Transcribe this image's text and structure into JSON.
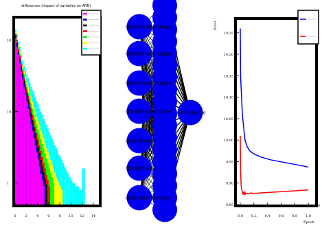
{
  "chart_data": [
    {
      "type": "bar",
      "title": "differences (impact of variables on ANN)",
      "xlabel": "",
      "ylabel": "",
      "xlim": [
        0,
        15
      ],
      "ylim_log": [
        0.5,
        200
      ],
      "log_y": true,
      "x_ticks": [
        "0",
        "2",
        "4",
        "6",
        "8",
        "10",
        "12",
        "14"
      ],
      "y_ticks": [
        "1",
        "10",
        "10",
        "10"
      ],
      "legend_placement": "top-right",
      "bin_width": 0.25,
      "series": [
        {
          "color": "#00ffff",
          "values": [
            140,
            120,
            95,
            80,
            62,
            52,
            44,
            38,
            33,
            29,
            25,
            22,
            20,
            18,
            16,
            14,
            12.5,
            11,
            10,
            9,
            8,
            7.2,
            6.5,
            5.8,
            5.2,
            4.7,
            4.2,
            3.8,
            3.4,
            3.1,
            2.8,
            2.5,
            2.3,
            2.1,
            1.9,
            1.7,
            1.55,
            1.4,
            1.3,
            1.2,
            1.1,
            1,
            1,
            0.9,
            0.9,
            0.9,
            0.8,
            0.8,
            1.6,
            1.6
          ]
        },
        {
          "color": "#ffff00",
          "values": [
            130,
            110,
            85,
            70,
            55,
            45,
            37,
            31,
            26,
            22,
            18.5,
            16,
            13.5,
            11.5,
            10,
            8.5,
            7.4,
            6.4,
            5.5,
            4.8,
            4.2,
            3.6,
            3.1,
            2.7,
            2.4,
            2.1,
            1.8,
            1.6,
            1.4,
            1.2,
            1.1,
            1,
            0.9,
            0.8
          ]
        },
        {
          "color": "#00ff00",
          "values": [
            125,
            100,
            80,
            64,
            50,
            40,
            33,
            27,
            22,
            18.5,
            15.5,
            13,
            11,
            9.2,
            7.8,
            6.6,
            5.6,
            4.8,
            4.1,
            3.5,
            3,
            2.6,
            2.2,
            1.9,
            1.6,
            1.4,
            1.2,
            1
          ]
        },
        {
          "color": "#ff0000",
          "values": [
            120,
            95,
            75,
            60,
            46,
            37,
            30,
            24,
            20,
            16.5,
            13.5,
            11,
            9,
            7.4,
            6,
            5,
            4.1,
            3.4,
            2.8,
            2.3,
            1.9,
            1.6,
            1.3,
            1.1,
            0.9
          ]
        },
        {
          "color": "#000000",
          "values": [
            115,
            90,
            70,
            55,
            43,
            34,
            27,
            22,
            18,
            14.5,
            11.5,
            9.4,
            7.6,
            6.1,
            5,
            4,
            3.2,
            2.6,
            2.1,
            1.7,
            1.4,
            1.15,
            0.95
          ]
        },
        {
          "color": "#0000ff",
          "values": [
            110,
            85,
            65,
            50,
            39,
            31,
            24,
            19.5,
            15.5,
            12.5,
            10,
            8,
            6.4,
            5.1,
            4.1,
            3.3,
            2.6,
            2.1,
            1.7,
            1.35,
            1.1,
            0.9
          ]
        },
        {
          "color": "#ff00ff",
          "values": [
            105,
            80,
            62,
            47,
            36,
            28,
            22,
            17.5,
            14,
            11,
            8.6,
            6.8,
            5.4,
            4.3,
            3.4,
            2.7,
            2.15,
            1.7,
            1.35,
            1.1,
            0.9
          ]
        }
      ]
    },
    {
      "type": "line",
      "title": "",
      "xlabel": "Epoch",
      "ylabel": "Error",
      "xlim": [
        -0.05,
        1.1
      ],
      "ylim": [
        9.85,
        10.28
      ],
      "x_ticks": [
        "0.0",
        "0.2",
        "0.4",
        "0.6",
        "0.8",
        "1.0"
      ],
      "y_ticks": [
        "9.85",
        "9.90",
        "9.95",
        "10.00",
        "10.05",
        "10.10",
        "10.15",
        "10.20",
        "10.25"
      ],
      "x_exponent_label": "10",
      "legend_placement": "top-right",
      "series": [
        {
          "color": "#0000ff",
          "x": [
            0.0,
            0.005,
            0.01,
            0.02,
            0.03,
            0.05,
            0.07,
            0.1,
            0.14,
            0.2,
            0.28,
            0.36,
            0.45,
            0.55,
            0.65,
            0.75,
            0.85,
            0.95,
            1.0
          ],
          "y": [
            10.26,
            10.15,
            10.13,
            10.1,
            10.06,
            10.03,
            10.0,
            9.985,
            9.975,
            9.968,
            9.962,
            9.958,
            9.954,
            9.951,
            9.948,
            9.945,
            9.942,
            9.939,
            9.937
          ]
        },
        {
          "color": "#ff0000",
          "x": [
            0.0,
            0.005,
            0.01,
            0.015,
            0.02,
            0.03,
            0.04,
            0.05,
            0.06,
            0.07,
            0.08,
            0.1,
            0.12,
            0.15,
            0.2,
            0.3,
            0.4,
            0.5,
            0.6,
            0.7,
            0.8,
            0.9,
            1.0
          ],
          "y": [
            10.01,
            9.93,
            9.905,
            9.89,
            9.885,
            9.88,
            9.875,
            9.88,
            9.872,
            9.878,
            9.874,
            9.876,
            9.875,
            9.877,
            9.876,
            9.877,
            9.878,
            9.879,
            9.88,
            9.881,
            9.882,
            9.883,
            9.884
          ]
        }
      ]
    }
  ],
  "network": {
    "input_nodes": [
      "@$Y$ClusterShape",
      "@$X$ClusterShape",
      "@$Y$ClusterSigma",
      "@$X$ClusterSigma",
      "@$Y$Cluster",
      "@$X$Cluster",
      "@$Cluster$Energy"
    ],
    "output_node": "@ClusterDe"
  },
  "colors": {
    "node": "#0000ee",
    "frame": "#000000"
  }
}
